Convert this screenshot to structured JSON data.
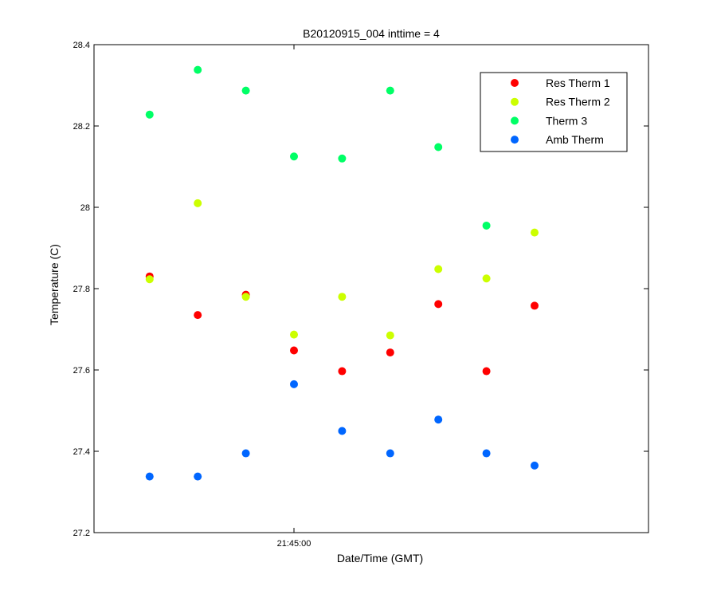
{
  "chart_data": {
    "type": "scatter",
    "title": "B20120915_004 inttime = 4",
    "xlabel": "Date/Time (GMT)",
    "ylabel": "Temperature (C)",
    "x_tick_labels": [
      "21:45:00"
    ],
    "y_tick_labels": [
      "27.2",
      "27.4",
      "27.6",
      "27.8",
      "28",
      "28.2",
      "28.4"
    ],
    "ylim": [
      27.2,
      28.4
    ],
    "grid": false,
    "legend_position": "top-right",
    "x": [
      -3,
      -2,
      -1,
      0,
      1,
      2,
      3,
      4,
      5
    ],
    "x_unit": "samples relative to 21:45:00",
    "series": [
      {
        "name": "Res Therm 1",
        "color": "#ff0000",
        "values": [
          27.83,
          27.735,
          27.785,
          27.648,
          27.597,
          27.643,
          27.762,
          27.597,
          27.758
        ]
      },
      {
        "name": "Res Therm 2",
        "color": "#ccff00",
        "values": [
          27.823,
          28.01,
          27.78,
          27.687,
          27.78,
          27.685,
          27.848,
          27.825,
          27.938
        ]
      },
      {
        "name": "Therm 3",
        "color": "#00ff66",
        "values": [
          28.228,
          28.338,
          28.287,
          28.125,
          28.12,
          28.287,
          28.148,
          27.955,
          null
        ]
      },
      {
        "name": "Amb Therm",
        "color": "#0066ff",
        "values": [
          27.338,
          27.338,
          27.395,
          27.565,
          27.45,
          27.395,
          27.478,
          27.395,
          27.365
        ]
      }
    ]
  }
}
